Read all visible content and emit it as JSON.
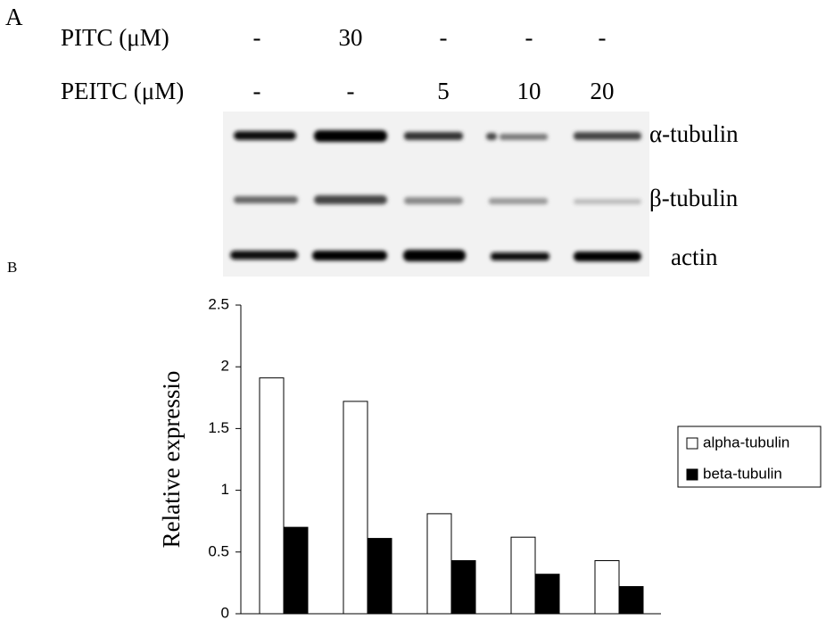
{
  "panel_a": {
    "label": "A",
    "rows": [
      {
        "label": "PITC   (μM)",
        "values": [
          "-",
          "30",
          "-",
          "-",
          "-"
        ]
      },
      {
        "label": "PEITC (μM)",
        "values": [
          "-",
          "-",
          "5",
          "10",
          "20"
        ]
      }
    ],
    "bands": [
      "α-tubulin",
      "β-tubulin",
      "actin"
    ]
  },
  "chart_data": {
    "type": "bar",
    "panel_label": "B",
    "y_label": "Relative expressio",
    "categories": [
      null,
      null,
      null,
      null,
      null
    ],
    "series": [
      {
        "name": "alpha-tubulin",
        "color": "#ffffff",
        "values": [
          1.91,
          1.72,
          0.81,
          0.62,
          0.43
        ]
      },
      {
        "name": "beta-tubulin",
        "color": "#000000",
        "values": [
          0.7,
          0.61,
          0.43,
          0.32,
          0.22
        ]
      }
    ],
    "ylim": [
      0,
      2.5
    ],
    "yticks": [
      0,
      0.5,
      1,
      1.5,
      2,
      2.5
    ],
    "legend": "right"
  }
}
